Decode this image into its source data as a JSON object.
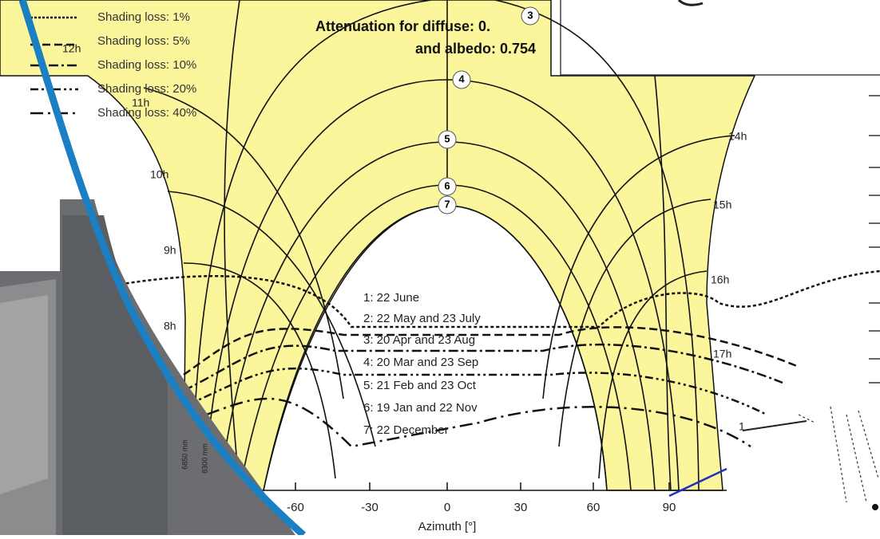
{
  "legend": {
    "items": [
      "Shading loss: 1%",
      "Shading loss: 5%",
      "Shading loss: 10%",
      "Shading loss: 20%",
      "Shading loss: 40%"
    ]
  },
  "attenuation": {
    "line1": "Attenuation for diffuse: 0.",
    "line2": "and albedo: 0.754"
  },
  "markers": [
    "3",
    "4",
    "5",
    "6",
    "7"
  ],
  "hour_labels": [
    "12h",
    "11h",
    "10h",
    "9h",
    "8h",
    "14h",
    "15h",
    "16h",
    "17h",
    "1"
  ],
  "date_list": [
    "1: 22 June",
    "2: 22 May and 23 July",
    "3: 20 Apr and 23 Aug",
    "4: 20 Mar and 23 Sep",
    "5: 21 Feb and 23 Oct",
    "6: 19 Jan and 22 Nov",
    "7: 22 December"
  ],
  "axis": {
    "ticks": [
      "-60",
      "-30",
      "0",
      "30",
      "60",
      "90"
    ],
    "title": "Azimuth [°]"
  },
  "photo_labels": [
    "6850 mm",
    "8300 mm"
  ]
}
